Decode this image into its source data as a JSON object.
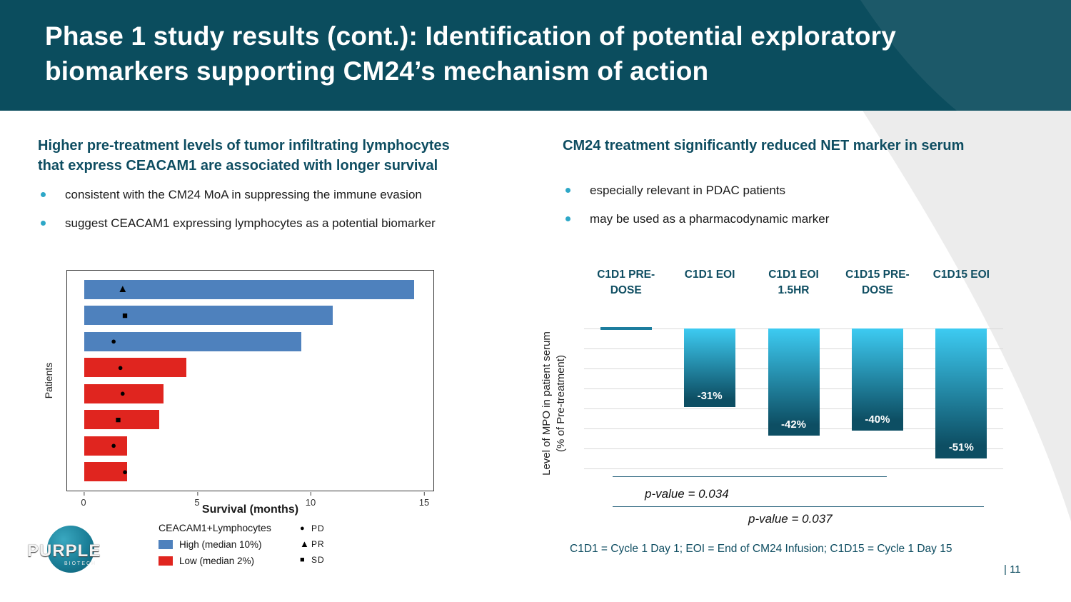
{
  "header": {
    "title_lines": [
      "Phase 1 study results (cont.): Identification of potential exploratory",
      "biomarkers supporting CM24’s mechanism of action"
    ]
  },
  "left_section": {
    "heading_lines": [
      "Higher pre-treatment levels of tumor infiltrating lymphocytes",
      "that express CEACAM1 are associated with longer survival"
    ],
    "bullets": [
      "consistent with the CM24 MoA in suppressing the immune evasion",
      "suggest CEACAM1 expressing lymphocytes as a potential biomarker"
    ]
  },
  "right_section": {
    "heading": "CM24 treatment significantly reduced NET marker in serum",
    "bullets": [
      "especially relevant in PDAC patients",
      "may be used as a pharmacodynamic marker"
    ],
    "footnote": "C1D1 = Cycle 1 Day 1; EOI = End of CM24 Infusion; C1D15 = Cycle 1 Day 15"
  },
  "logo": {
    "text": "PURPLE",
    "subtext": "BIOTECH"
  },
  "page_number": "| 11",
  "colors": {
    "header_bg": "#0b4d5e",
    "heading_teal": "#0e4d61",
    "bullet_teal": "#2da7c7",
    "high_blue": "#4e81bd",
    "low_red": "#e0251f",
    "bar_gradient_top": "#3dcbf2",
    "bar_gradient_bottom": "#0d4e63"
  },
  "chart_data": [
    {
      "type": "bar",
      "orientation": "horizontal",
      "description": "Swimmer plot: patient survival by pre-treatment CEACAM1+ lymphocyte level; marker shows best response",
      "xlabel": "Survival (months)",
      "ylabel": "Patients",
      "xlim": [
        0,
        15
      ],
      "xticks": [
        0,
        5,
        10,
        15
      ],
      "bars": [
        {
          "survival_months": 14.6,
          "group": "High",
          "response": "PR",
          "marker_x": 1.7
        },
        {
          "survival_months": 11.0,
          "group": "High",
          "response": "SD",
          "marker_x": 1.8
        },
        {
          "survival_months": 9.6,
          "group": "High",
          "response": "PD",
          "marker_x": 1.3
        },
        {
          "survival_months": 4.5,
          "group": "Low",
          "response": "PD",
          "marker_x": 1.6
        },
        {
          "survival_months": 3.5,
          "group": "Low",
          "response": "PD",
          "marker_x": 1.7
        },
        {
          "survival_months": 3.3,
          "group": "Low",
          "response": "SD",
          "marker_x": 1.5
        },
        {
          "survival_months": 1.9,
          "group": "Low",
          "response": "PD",
          "marker_x": 1.3
        },
        {
          "survival_months": 1.9,
          "group": "Low",
          "response": "PD",
          "marker_x": 1.8
        }
      ],
      "legend": {
        "title": "CEACAM1+Lymphocytes",
        "groups": [
          {
            "label": "High (median 10%)",
            "color": "#4e81bd"
          },
          {
            "label": "Low (median 2%)",
            "color": "#e0251f"
          }
        ],
        "markers": [
          {
            "shape": "circle",
            "label": "PD"
          },
          {
            "shape": "triangle",
            "label": "PR"
          },
          {
            "shape": "square",
            "label": "SD"
          }
        ]
      }
    },
    {
      "type": "bar",
      "categories": [
        "C1D1 PRE-DOSE",
        "C1D1 EOI",
        "C1D1 EOI 1.5HR",
        "C1D15 PRE-DOSE",
        "C1D15 EOI"
      ],
      "values": [
        0,
        -31,
        -42,
        -40,
        -51
      ],
      "bar_labels": [
        "",
        "-31%",
        "-42%",
        "-40%",
        "-51%"
      ],
      "ylabel": "Level of MPO in patient serum (% of Pre-treatment)",
      "ylabel_lines": [
        "Level of MPO in patient serum",
        "(% of Pre-treatment)"
      ],
      "ylim": [
        -55,
        0
      ],
      "grid": true,
      "legend_position": "none",
      "p_values": [
        {
          "label": "p-value = 0.034",
          "span_categories": [
            0,
            2
          ]
        },
        {
          "label": "p-value = 0.037",
          "span_categories": [
            0,
            4
          ]
        }
      ]
    }
  ]
}
